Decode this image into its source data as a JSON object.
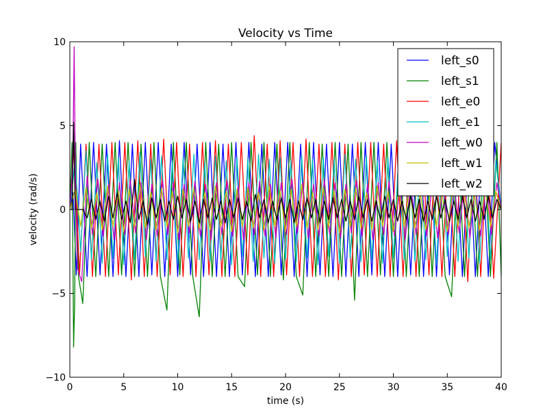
{
  "chart_data": {
    "type": "line",
    "title": "Velocity vs Time",
    "xlabel": "time (s)",
    "ylabel": "velocity (rad/s)",
    "xlim": [
      0,
      40
    ],
    "ylim": [
      -10,
      10
    ],
    "xticks": [
      "0",
      "5",
      "10",
      "15",
      "20",
      "25",
      "30",
      "35",
      "40"
    ],
    "yticks": [
      "−10",
      "−5",
      "0",
      "5",
      "10"
    ],
    "grid": false,
    "legend_position": "top-right",
    "series": [
      {
        "name": "left_s0",
        "color": "#0000ff",
        "x": [
          0,
          0.3,
          0.6,
          1.0,
          1.6,
          2.2,
          2.8,
          3.4,
          4.0,
          4.6,
          5.2,
          5.8,
          6.4,
          7.0,
          7.6,
          8.2,
          8.8,
          9.4,
          10.0,
          10.6,
          11.2,
          11.8,
          12.4,
          13.0,
          13.6,
          14.2,
          14.8,
          15.4,
          16.0,
          16.6,
          17.2,
          17.8,
          18.4,
          19.0,
          19.6,
          20.2,
          20.8,
          21.4,
          22.0,
          22.6,
          23.2,
          23.8,
          24.4,
          25.0,
          25.6,
          26.2,
          26.8,
          27.4,
          28.0,
          28.6,
          29.2,
          29.8,
          30.4,
          31.0,
          31.6,
          32.2,
          32.8,
          33.4,
          34.0,
          34.6,
          35.2,
          35.8,
          36.4,
          37.0,
          37.6,
          38.2,
          38.8,
          39.4,
          40.0
        ],
        "y": [
          0,
          1,
          -3.9,
          3.9,
          -4.0,
          4.0,
          -3.9,
          3.9,
          -4.0,
          4.1,
          -4.0,
          3.9,
          -4.0,
          4.0,
          -3.9,
          4.0,
          -4.0,
          3.9,
          -4.0,
          4.0,
          -3.9,
          3.9,
          -4.0,
          4.0,
          -4.0,
          3.9,
          -4.0,
          4.0,
          -3.9,
          4.0,
          -4.0,
          3.9,
          -4.0,
          4.0,
          -3.9,
          4.0,
          -4.0,
          3.9,
          -4.0,
          4.0,
          -3.9,
          3.9,
          -4.0,
          4.0,
          -4.0,
          3.9,
          -4.0,
          4.0,
          -3.9,
          4.0,
          -4.0,
          3.9,
          -4.0,
          4.0,
          -3.9,
          4.0,
          -4.0,
          3.9,
          -4.0,
          4.0,
          -3.9,
          3.9,
          -4.0,
          4.0,
          -4.0,
          3.9,
          -4.0,
          4.0,
          0
        ]
      },
      {
        "name": "left_s1",
        "color": "#008000",
        "x": [
          0,
          0.2,
          0.35,
          0.45,
          0.55,
          0.8,
          1.2,
          1.8,
          2.4,
          3.0,
          3.6,
          4.2,
          4.8,
          5.4,
          6.0,
          6.6,
          7.2,
          7.8,
          8.4,
          9.0,
          9.6,
          10.2,
          10.8,
          11.4,
          12.0,
          12.6,
          13.2,
          13.8,
          14.4,
          15.0,
          15.6,
          16.2,
          16.8,
          17.4,
          18.0,
          18.6,
          19.2,
          19.8,
          20.4,
          21.0,
          21.6,
          22.2,
          22.8,
          23.4,
          24.0,
          24.6,
          25.2,
          25.8,
          26.4,
          27.0,
          27.6,
          28.2,
          28.8,
          29.4,
          30.0,
          30.6,
          31.2,
          31.8,
          32.4,
          33.0,
          33.6,
          34.2,
          34.8,
          35.4,
          36.0,
          36.6,
          37.2,
          37.8,
          38.4,
          39.0,
          39.6,
          40.0
        ],
        "y": [
          0,
          4.0,
          -8.2,
          -5.5,
          4.0,
          -4.0,
          -5.6,
          4.0,
          -4.0,
          3.9,
          -4.0,
          4.0,
          -3.9,
          4.0,
          -4.0,
          3.9,
          -4.0,
          4.0,
          -4.0,
          -6.0,
          4.0,
          -3.9,
          4.0,
          -4.0,
          -6.4,
          4.0,
          -4.0,
          3.9,
          -4.0,
          4.0,
          -4.0,
          -4.6,
          4.0,
          -3.9,
          4.0,
          -4.0,
          3.9,
          -4.2,
          4.0,
          -4.0,
          -5.1,
          4.0,
          -4.0,
          3.9,
          -4.0,
          4.0,
          -4.0,
          3.9,
          -5.4,
          4.0,
          -4.0,
          4.0,
          -3.9,
          4.0,
          -4.0,
          4.0,
          -4.0,
          3.9,
          -4.0,
          4.0,
          -4.0,
          3.9,
          -4.0,
          -5.2,
          4.0,
          -4.0,
          3.9,
          -4.0,
          4.0,
          -4.0,
          4.0,
          -4.0
        ]
      },
      {
        "name": "left_e0",
        "color": "#ff0000",
        "x": [
          0,
          0.4,
          0.9,
          1.5,
          2.1,
          2.7,
          3.3,
          3.9,
          4.5,
          5.1,
          5.7,
          6.3,
          6.9,
          7.5,
          8.1,
          8.7,
          9.3,
          9.9,
          10.5,
          11.1,
          11.7,
          12.3,
          12.9,
          13.5,
          14.1,
          14.7,
          15.3,
          15.9,
          16.5,
          17.1,
          17.7,
          18.3,
          18.9,
          19.5,
          20.1,
          20.7,
          21.3,
          21.9,
          22.5,
          23.1,
          23.7,
          24.3,
          24.9,
          25.5,
          26.1,
          26.7,
          27.3,
          27.9,
          28.5,
          29.1,
          29.7,
          30.3,
          30.9,
          31.5,
          32.1,
          32.7,
          33.3,
          33.9,
          34.5,
          35.1,
          35.7,
          36.3,
          36.9,
          37.5,
          38.1,
          38.7,
          39.3,
          40.0
        ],
        "y": [
          0,
          3.8,
          -3.9,
          3.9,
          -4.0,
          3.9,
          -4.0,
          4.0,
          -3.9,
          4.0,
          -4.2,
          4.1,
          -4.0,
          3.9,
          -4.0,
          4.2,
          -3.9,
          4.0,
          -4.0,
          3.9,
          -4.0,
          4.0,
          -3.9,
          4.1,
          -4.0,
          3.9,
          -4.0,
          4.0,
          -3.9,
          4.4,
          -4.0,
          3.9,
          -4.0,
          4.1,
          -3.9,
          4.0,
          -4.0,
          4.2,
          -4.0,
          3.9,
          -4.0,
          4.0,
          -4.2,
          3.9,
          -4.0,
          4.0,
          -3.9,
          4.0,
          -4.0,
          3.9,
          -4.0,
          4.1,
          -4.0,
          3.9,
          -4.0,
          4.0,
          -3.9,
          4.0,
          -4.0,
          3.9,
          -4.0,
          4.0,
          -4.3,
          3.9,
          -4.0,
          4.0,
          -4.1,
          4.0
        ]
      },
      {
        "name": "left_e1",
        "color": "#00bfbf",
        "x": [
          0,
          0.5,
          1.0,
          1.5,
          2.0,
          2.5,
          3.0,
          3.5,
          4.0,
          4.5,
          5.0,
          5.5,
          6.0,
          6.5,
          7.0,
          7.5,
          8.0,
          8.5,
          9.0,
          9.5,
          10.0,
          10.5,
          11.0,
          11.5,
          12.0,
          12.5,
          13.0,
          13.5,
          14.0,
          14.5,
          15.0,
          15.5,
          16.0,
          16.5,
          17.0,
          17.5,
          18.0,
          18.5,
          19.0,
          19.5,
          20.0,
          20.5,
          21.0,
          21.5,
          22.0,
          22.5,
          23.0,
          23.5,
          24.0,
          24.5,
          25.0,
          25.5,
          26.0,
          26.5,
          27.0,
          27.5,
          28.0,
          28.5,
          29.0,
          29.5,
          30.0,
          30.5,
          31.0,
          31.5,
          32.0,
          32.5,
          33.0,
          33.5,
          34.0,
          34.5,
          35.0,
          35.5,
          36.0,
          36.5,
          37.0,
          37.5,
          38.0,
          38.5,
          39.0,
          39.5,
          40.0
        ],
        "y": [
          0,
          3.0,
          -2.5,
          3.5,
          -3.0,
          2.8,
          -3.2,
          3.3,
          -2.9,
          3.1,
          -3.3,
          2.9,
          -3.0,
          3.4,
          -2.8,
          3.0,
          -3.1,
          3.2,
          -3.0,
          2.9,
          -3.2,
          3.1,
          -2.9,
          3.3,
          -3.0,
          2.8,
          -3.1,
          3.2,
          -3.0,
          2.9,
          -3.3,
          3.1,
          -2.8,
          3.0,
          -3.1,
          3.3,
          -2.9,
          3.0,
          -3.2,
          3.1,
          -3.0,
          2.9,
          -3.1,
          3.2,
          -2.9,
          3.0,
          -3.3,
          3.1,
          -2.8,
          3.0,
          -3.2,
          3.3,
          -2.9,
          3.0,
          -3.1,
          3.2,
          -3.0,
          2.9,
          -3.2,
          3.1,
          -2.9,
          3.3,
          -3.0,
          2.8,
          -3.1,
          3.2,
          -3.0,
          2.9,
          -3.3,
          3.1,
          -2.8,
          3.0,
          -3.1,
          3.3,
          -2.9,
          3.0,
          -3.2,
          3.1,
          -3.0,
          2.9,
          0
        ]
      },
      {
        "name": "left_w0",
        "color": "#bf00bf",
        "x": [
          0,
          0.2,
          0.3,
          0.4,
          0.5,
          0.7,
          1.1,
          1.6,
          2.1,
          2.6,
          3.1,
          3.6,
          4.1,
          4.6,
          5.1,
          5.6,
          6.1,
          6.6,
          7.1,
          7.6,
          8.1,
          8.6,
          9.1,
          9.6,
          10.1,
          10.6,
          11.1,
          11.6,
          12.1,
          12.6,
          13.1,
          13.6,
          14.1,
          14.6,
          15.1,
          15.6,
          16.1,
          16.6,
          17.1,
          17.6,
          18.1,
          18.6,
          19.1,
          19.6,
          20.1,
          20.6,
          21.1,
          21.6,
          22.1,
          22.6,
          23.1,
          23.6,
          24.1,
          24.6,
          25.1,
          25.6,
          26.1,
          26.6,
          27.1,
          27.6,
          28.1,
          28.6,
          29.1,
          29.6,
          30.1,
          30.6,
          31.1,
          31.6,
          32.1,
          32.6,
          33.1,
          33.6,
          34.1,
          34.6,
          35.1,
          35.6,
          36.1,
          36.6,
          37.1,
          37.6,
          38.1,
          38.6,
          39.1,
          39.6,
          40.0
        ],
        "y": [
          0,
          2.0,
          4.0,
          9.7,
          2.5,
          -3.5,
          -4.3,
          2.0,
          -1.5,
          1.8,
          -1.6,
          1.5,
          -1.8,
          1.6,
          -1.5,
          1.8,
          -1.4,
          1.6,
          -1.8,
          1.5,
          -1.6,
          1.7,
          -1.5,
          1.6,
          -1.8,
          1.5,
          -1.4,
          1.7,
          -1.6,
          1.5,
          -1.8,
          1.6,
          -1.5,
          1.7,
          -1.6,
          1.4,
          -1.8,
          1.6,
          -1.5,
          1.7,
          -1.6,
          1.5,
          -1.7,
          1.6,
          -1.5,
          1.8,
          -1.4,
          1.6,
          -1.7,
          1.5,
          -1.6,
          1.8,
          -1.5,
          1.6,
          -1.7,
          1.5,
          -1.4,
          1.7,
          -1.6,
          1.5,
          -1.8,
          1.6,
          -1.5,
          1.7,
          -1.6,
          1.4,
          -1.8,
          1.6,
          -1.5,
          1.7,
          -1.6,
          1.5,
          -1.7,
          1.6,
          -1.5,
          1.8,
          -1.4,
          1.6,
          -1.7,
          1.5,
          -1.6,
          1.8,
          -1.5,
          1.6,
          0
        ]
      },
      {
        "name": "left_w1",
        "color": "#bfbf00",
        "x": [
          0,
          0.5,
          1.0,
          1.5,
          2.0,
          2.5,
          3.0,
          3.5,
          4.0,
          4.5,
          5.0,
          5.5,
          6.0,
          6.5,
          7.0,
          7.5,
          8.0,
          8.5,
          9.0,
          9.5,
          10.0,
          10.5,
          11.0,
          11.5,
          12.0,
          12.5,
          13.0,
          13.5,
          14.0,
          14.5,
          15.0,
          15.5,
          16.0,
          16.5,
          17.0,
          17.5,
          18.0,
          18.5,
          19.0,
          19.5,
          20.0,
          20.5,
          21.0,
          21.5,
          22.0,
          22.5,
          23.0,
          23.5,
          24.0,
          24.5,
          25.0,
          25.5,
          26.0,
          26.5,
          27.0,
          27.5,
          28.0,
          28.5,
          29.0,
          29.5,
          30.0,
          30.5,
          31.0,
          31.5,
          32.0,
          32.5,
          33.0,
          33.5,
          34.0,
          34.5,
          35.0,
          35.5,
          36.0,
          36.5,
          37.0,
          37.5,
          38.0,
          38.5,
          39.0,
          39.5,
          40.0
        ],
        "y": [
          0,
          1.2,
          -1.0,
          1.3,
          -1.1,
          1.0,
          -1.2,
          1.4,
          -1.0,
          1.1,
          -1.3,
          1.2,
          -1.0,
          1.5,
          -1.1,
          1.0,
          -1.2,
          1.3,
          -1.0,
          1.1,
          -1.4,
          1.2,
          -1.0,
          1.3,
          -1.1,
          1.0,
          -1.2,
          1.4,
          -1.0,
          1.1,
          -1.3,
          1.2,
          -1.0,
          1.3,
          -1.1,
          1.0,
          -1.2,
          1.4,
          -1.0,
          1.1,
          -1.3,
          1.2,
          -1.0,
          1.5,
          -1.1,
          1.0,
          -1.2,
          1.3,
          -1.0,
          1.1,
          -1.4,
          1.2,
          -1.0,
          1.3,
          -1.1,
          1.0,
          -1.2,
          1.4,
          -1.0,
          1.1,
          -1.3,
          1.2,
          -1.0,
          1.3,
          -1.1,
          1.0,
          -1.2,
          1.4,
          -1.0,
          1.1,
          -1.3,
          1.2,
          -1.0,
          1.5,
          -1.1,
          1.0,
          -1.2,
          1.3,
          -1.0,
          1.1,
          0
        ]
      },
      {
        "name": "left_w2",
        "color": "#000000",
        "x": [
          0,
          0.2,
          0.35,
          0.5,
          0.8,
          1.2,
          1.6,
          2.0,
          2.4,
          2.8,
          3.2,
          3.6,
          4.0,
          4.4,
          4.8,
          5.2,
          5.6,
          6.0,
          6.4,
          6.8,
          7.2,
          7.6,
          8.0,
          8.4,
          8.8,
          9.2,
          9.6,
          10.0,
          10.4,
          10.8,
          11.2,
          11.6,
          12.0,
          12.4,
          12.8,
          13.2,
          13.6,
          14.0,
          14.4,
          14.8,
          15.2,
          15.6,
          16.0,
          16.4,
          16.8,
          17.2,
          17.6,
          18.0,
          18.4,
          18.8,
          19.2,
          19.6,
          20.0,
          20.4,
          20.8,
          21.2,
          21.6,
          22.0,
          22.4,
          22.8,
          23.2,
          23.6,
          24.0,
          24.4,
          24.8,
          25.2,
          25.6,
          26.0,
          26.4,
          26.8,
          27.2,
          27.6,
          28.0,
          28.4,
          28.8,
          29.2,
          29.6,
          30.0,
          30.4,
          30.8,
          31.2,
          31.6,
          32.0,
          32.4,
          32.8,
          33.2,
          33.6,
          34.0,
          34.4,
          34.8,
          35.2,
          35.6,
          36.0,
          36.4,
          36.8,
          37.2,
          37.6,
          38.0,
          38.4,
          38.8,
          39.2,
          39.6,
          40.0
        ],
        "y": [
          0,
          0,
          5.2,
          0,
          0,
          0,
          -0.5,
          0.6,
          -0.6,
          0.5,
          -0.7,
          0.8,
          -0.5,
          1.0,
          -0.6,
          0.5,
          -0.8,
          1.8,
          -0.6,
          0.5,
          -0.9,
          0.7,
          -0.5,
          0.6,
          -0.7,
          0.5,
          -0.6,
          0.8,
          -0.5,
          0.6,
          -0.7,
          0.5,
          -0.8,
          0.6,
          -0.5,
          0.7,
          -0.6,
          0.5,
          -0.8,
          0.6,
          -0.5,
          0.7,
          -0.6,
          0.5,
          -0.7,
          0.9,
          -0.5,
          0.6,
          -0.8,
          0.5,
          -0.6,
          0.7,
          -0.5,
          0.6,
          -0.8,
          0.5,
          -0.6,
          0.7,
          -0.5,
          0.6,
          -0.8,
          0.5,
          -0.6,
          0.7,
          -0.5,
          0.6,
          -0.7,
          0.5,
          -0.6,
          0.8,
          -0.5,
          0.6,
          -0.7,
          0.5,
          -0.6,
          0.8,
          -0.5,
          0.6,
          -0.7,
          0.5,
          -0.6,
          0.8,
          -0.5,
          0.6,
          -0.7,
          0.5,
          -0.6,
          0.8,
          -0.5,
          0.6,
          -0.7,
          0.5,
          -0.6,
          0.8,
          -0.5,
          0.6,
          -0.7,
          0.5,
          -0.6,
          0.8,
          -0.5,
          0.6,
          0
        ]
      }
    ]
  }
}
